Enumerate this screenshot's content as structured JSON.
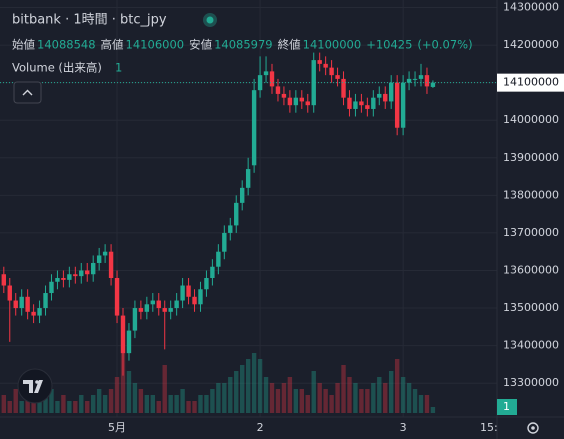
{
  "chart_data": {
    "type": "candlestick",
    "title": "bitbank · 1時間 · btc_jpy",
    "ohlc_labels": {
      "open": "始値",
      "high": "高値",
      "low": "安値",
      "close": "終値"
    },
    "change": "+10425",
    "change_pct": "(+0.07%)",
    "volume_label": "Volume (出来高)",
    "categories": [
      null,
      null,
      null,
      null,
      null,
      null,
      null,
      null,
      null,
      null,
      null,
      null,
      null,
      null,
      null,
      null,
      null,
      null,
      null,
      "5月",
      null,
      null,
      null,
      null,
      null,
      null,
      null,
      null,
      null,
      null,
      null,
      null,
      null,
      null,
      null,
      null,
      null,
      null,
      null,
      null,
      null,
      null,
      null,
      "2",
      null,
      null,
      null,
      null,
      null,
      null,
      null,
      null,
      null,
      null,
      null,
      null,
      null,
      null,
      null,
      null,
      null,
      null,
      null,
      null,
      null,
      null,
      null,
      "3",
      null,
      null,
      null,
      null,
      null
    ],
    "future_time_label": "15:",
    "open": [
      13590000,
      13560000,
      13520000,
      13500000,
      13530000,
      13490000,
      13480000,
      13500000,
      13540000,
      13570000,
      13580000,
      13575000,
      13590000,
      13585000,
      13600000,
      13590000,
      13620000,
      13640000,
      13650000,
      13580000,
      13480000,
      13380000,
      13440000,
      13500000,
      13490000,
      13510000,
      13520000,
      13500000,
      13490000,
      13500000,
      13520000,
      13560000,
      13530000,
      13510000,
      13550000,
      13580000,
      13610000,
      13650000,
      13700000,
      13720000,
      13780000,
      13820000,
      13880000,
      14080000,
      14120000,
      14130000,
      14090000,
      14070000,
      14060000,
      14040000,
      14060000,
      14050000,
      14040000,
      14160000,
      14150000,
      14140000,
      14120000,
      14110000,
      14060000,
      14030000,
      14050000,
      14040000,
      14030000,
      14060000,
      14070000,
      14050000,
      14100000,
      13980000,
      14100000,
      14110000,
      14110000,
      14120000,
      14088548
    ],
    "high": [
      13610000,
      13580000,
      13540000,
      13550000,
      13550000,
      13510000,
      13520000,
      13560000,
      13590000,
      13600000,
      13600000,
      13610000,
      13610000,
      13620000,
      13620000,
      13640000,
      13660000,
      13670000,
      13670000,
      13600000,
      13500000,
      13460000,
      13520000,
      13520000,
      13530000,
      13540000,
      13540000,
      13520000,
      13520000,
      13540000,
      13580000,
      13580000,
      13550000,
      13570000,
      13600000,
      13630000,
      13670000,
      13720000,
      13740000,
      13800000,
      13840000,
      13900000,
      14110000,
      14170000,
      14170000,
      14150000,
      14110000,
      14090000,
      14080000,
      14080000,
      14080000,
      14070000,
      14180000,
      14180000,
      14170000,
      14160000,
      14140000,
      14130000,
      14080000,
      14070000,
      14070000,
      14060000,
      14080000,
      14090000,
      14090000,
      14120000,
      14120000,
      14120000,
      14130000,
      14130000,
      14150000,
      14140000,
      14106000
    ],
    "low": [
      13540000,
      13410000,
      13480000,
      13480000,
      13470000,
      13460000,
      13460000,
      13480000,
      13520000,
      13550000,
      13555000,
      13555000,
      13565000,
      13565000,
      13570000,
      13570000,
      13600000,
      13620000,
      13560000,
      13460000,
      13320000,
      13360000,
      13420000,
      13470000,
      13470000,
      13490000,
      13480000,
      13390000,
      13470000,
      13480000,
      13500000,
      13510000,
      13490000,
      13490000,
      13530000,
      13560000,
      13590000,
      13630000,
      13680000,
      13700000,
      13760000,
      13800000,
      13860000,
      14060000,
      14100000,
      14070000,
      14050000,
      14040000,
      14020000,
      14020000,
      14030000,
      14020000,
      14020000,
      14130000,
      14120000,
      14100000,
      14090000,
      14040000,
      14010000,
      14010000,
      14020000,
      14010000,
      14010000,
      14040000,
      14030000,
      14030000,
      13960000,
      13960000,
      14080000,
      14090000,
      14090000,
      14070000,
      14085979
    ],
    "close": [
      13560000,
      13520000,
      13500000,
      13530000,
      13490000,
      13480000,
      13500000,
      13540000,
      13570000,
      13580000,
      13575000,
      13590000,
      13585000,
      13600000,
      13590000,
      13620000,
      13640000,
      13650000,
      13580000,
      13480000,
      13380000,
      13440000,
      13500000,
      13490000,
      13510000,
      13520000,
      13500000,
      13490000,
      13500000,
      13520000,
      13560000,
      13530000,
      13510000,
      13550000,
      13580000,
      13610000,
      13650000,
      13700000,
      13720000,
      13780000,
      13820000,
      13870000,
      14080000,
      14120000,
      14130000,
      14090000,
      14070000,
      14060000,
      14040000,
      14060000,
      14050000,
      14040000,
      14160000,
      14150000,
      14140000,
      14120000,
      14110000,
      14060000,
      14030000,
      14050000,
      14040000,
      14030000,
      14060000,
      14070000,
      14050000,
      14100000,
      13980000,
      14100000,
      14110000,
      14110000,
      14120000,
      14090000,
      14100000
    ],
    "volume": [
      3,
      2,
      4,
      2,
      3,
      2,
      2,
      3,
      4,
      2,
      3,
      2,
      2,
      3,
      2,
      3,
      4,
      3,
      4,
      6,
      10,
      7,
      5,
      4,
      3,
      3,
      2,
      8,
      3,
      3,
      4,
      2,
      2,
      3,
      3,
      4,
      5,
      5,
      6,
      7,
      8,
      9,
      10,
      9,
      6,
      5,
      4,
      5,
      6,
      4,
      4,
      3,
      7,
      5,
      4,
      3,
      5,
      8,
      6,
      5,
      4,
      4,
      5,
      6,
      5,
      7,
      9,
      6,
      5,
      4,
      3,
      3,
      1
    ],
    "ylim": [
      13210000,
      14320000
    ],
    "yticks": [
      13300000,
      13400000,
      13500000,
      13600000,
      13700000,
      13800000,
      13900000,
      14000000,
      14100000,
      14200000,
      14300000
    ],
    "volume_ylim": [
      0,
      10
    ],
    "up_color": "#22ab94",
    "down_color": "#f23645",
    "grid": true
  }
}
